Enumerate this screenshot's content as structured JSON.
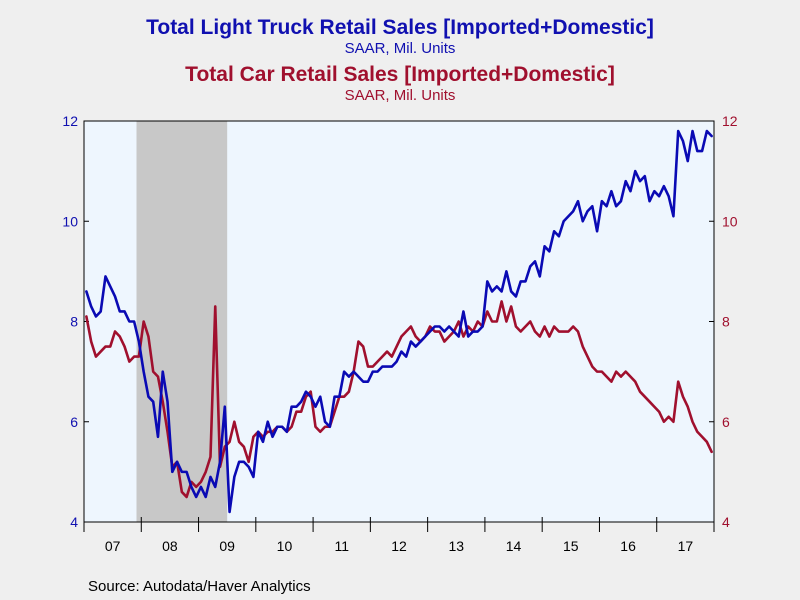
{
  "titles": {
    "truck_title": "Total Light Truck Retail Sales [Imported+Domestic]",
    "truck_subtitle": "SAAR, Mil. Units",
    "car_title": "Total Car Retail Sales [Imported+Domestic]",
    "car_subtitle": "SAAR, Mil. Units"
  },
  "source": "Source:  Autodata/Haver Analytics",
  "colors": {
    "truck": "#0a0ab4",
    "car": "#a0102e",
    "plot_bg": "#eef6fe",
    "recession": "#c8c8c8"
  },
  "chart_data": {
    "type": "line",
    "x_start": "2007-01",
    "x_end": "2017-12",
    "x_tick_labels": [
      "07",
      "08",
      "09",
      "10",
      "11",
      "12",
      "13",
      "14",
      "15",
      "16",
      "17"
    ],
    "ylim": [
      4,
      12
    ],
    "y_ticks_left": [
      "4",
      "6",
      "8",
      "10",
      "12"
    ],
    "y_ticks_right": [
      "4",
      "6",
      "8",
      "10",
      "12"
    ],
    "grid": false,
    "recession_shading": {
      "start": "2007-12",
      "end": "2009-06"
    },
    "series": [
      {
        "name": "Total Light Truck Retail Sales [Imported+Domestic]",
        "axis": "left",
        "color": "#0a0ab4",
        "values": [
          8.6,
          8.3,
          8.1,
          8.2,
          8.9,
          8.7,
          8.5,
          8.2,
          8.2,
          8.0,
          8.0,
          7.6,
          7.0,
          6.5,
          6.4,
          5.7,
          7.0,
          6.4,
          5.0,
          5.2,
          5.0,
          5.0,
          4.7,
          4.5,
          4.7,
          4.5,
          4.9,
          4.7,
          5.2,
          6.3,
          4.2,
          4.9,
          5.2,
          5.2,
          5.1,
          4.9,
          5.8,
          5.6,
          6.0,
          5.7,
          5.9,
          5.9,
          5.8,
          6.3,
          6.3,
          6.4,
          6.6,
          6.5,
          6.3,
          6.5,
          6.0,
          5.9,
          6.5,
          6.5,
          7.0,
          6.9,
          7.0,
          6.9,
          6.8,
          6.8,
          7.0,
          7.0,
          7.1,
          7.1,
          7.1,
          7.2,
          7.4,
          7.3,
          7.6,
          7.5,
          7.6,
          7.7,
          7.8,
          7.9,
          7.9,
          7.8,
          7.9,
          7.8,
          7.7,
          8.2,
          7.7,
          7.8,
          7.8,
          7.9,
          8.8,
          8.6,
          8.7,
          8.6,
          9.0,
          8.6,
          8.5,
          8.8,
          8.8,
          9.1,
          9.2,
          8.9,
          9.5,
          9.4,
          9.8,
          9.7,
          10.0,
          10.1,
          10.2,
          10.4,
          10.0,
          10.2,
          10.3,
          9.8,
          10.4,
          10.3,
          10.6,
          10.3,
          10.4,
          10.8,
          10.6,
          11.0,
          10.8,
          10.9,
          10.4,
          10.6,
          10.5,
          10.7,
          10.5,
          10.1,
          11.8,
          11.6,
          11.2,
          11.8,
          11.4,
          11.4,
          11.8,
          11.7
        ]
      },
      {
        "name": "Total Car Retail Sales [Imported+Domestic]",
        "axis": "right",
        "color": "#a0102e",
        "values": [
          8.1,
          7.6,
          7.3,
          7.4,
          7.5,
          7.5,
          7.8,
          7.7,
          7.5,
          7.2,
          7.3,
          7.3,
          8.0,
          7.7,
          7.0,
          6.9,
          6.4,
          5.8,
          5.1,
          5.2,
          4.6,
          4.5,
          4.8,
          4.7,
          4.8,
          5.0,
          5.3,
          8.3,
          5.1,
          5.5,
          5.6,
          6.0,
          5.6,
          5.5,
          5.2,
          5.7,
          5.8,
          5.7,
          5.8,
          5.8,
          5.9,
          5.9,
          5.8,
          5.9,
          6.2,
          6.2,
          6.5,
          6.6,
          5.9,
          5.8,
          5.9,
          5.9,
          6.2,
          6.5,
          6.5,
          6.6,
          7.0,
          7.6,
          7.5,
          7.1,
          7.1,
          7.2,
          7.3,
          7.4,
          7.3,
          7.5,
          7.7,
          7.8,
          7.9,
          7.7,
          7.6,
          7.7,
          7.9,
          7.8,
          7.8,
          7.6,
          7.7,
          7.8,
          8.0,
          7.7,
          7.9,
          7.8,
          8.0,
          7.9,
          8.2,
          8.0,
          8.0,
          8.4,
          8.0,
          8.3,
          7.9,
          7.8,
          7.9,
          8.0,
          7.8,
          7.7,
          7.9,
          7.7,
          7.9,
          7.8,
          7.8,
          7.8,
          7.9,
          7.8,
          7.5,
          7.3,
          7.1,
          7.0,
          7.0,
          6.9,
          6.8,
          7.0,
          6.9,
          7.0,
          6.9,
          6.8,
          6.6,
          6.5,
          6.4,
          6.3,
          6.2,
          6.0,
          6.1,
          6.0,
          6.8,
          6.5,
          6.3,
          6.0,
          5.8,
          5.7,
          5.6,
          5.4
        ]
      }
    ]
  }
}
